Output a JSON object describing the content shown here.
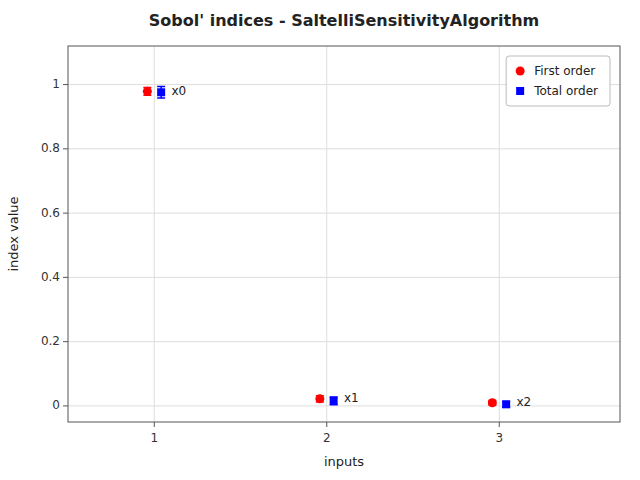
{
  "chart_data": {
    "type": "errorbar",
    "title": "Sobol' indices - SaltelliSensitivityAlgorithm",
    "x_label": "inputs",
    "y_label": "index value",
    "x": [
      1,
      2,
      3
    ],
    "xlim": [
      0.5,
      3.7
    ],
    "xticks": [
      1,
      2,
      3
    ],
    "ylim": [
      -0.05,
      1.12
    ],
    "yticks": [
      0,
      0.2,
      0.4,
      0.6,
      0.8,
      1
    ],
    "grid": true,
    "legend": "upper right",
    "series": [
      {
        "name": "First order",
        "color": "#ff0000",
        "marker": "circle",
        "values": [
          0.979,
          0.022,
          0.01
        ],
        "errors": [
          0.012,
          0.01,
          0.007
        ]
      },
      {
        "name": "Total order",
        "color": "#0000ff",
        "marker": "square",
        "values": [
          0.976,
          0.016,
          0.005
        ],
        "errors": [
          0.018,
          0.012,
          0.009
        ]
      }
    ],
    "annotations": [
      {
        "text": "x0",
        "x": 1,
        "y": 0.979
      },
      {
        "text": "x1",
        "x": 2,
        "y": 0.022
      },
      {
        "text": "x2",
        "x": 3,
        "y": 0.01
      }
    ]
  }
}
